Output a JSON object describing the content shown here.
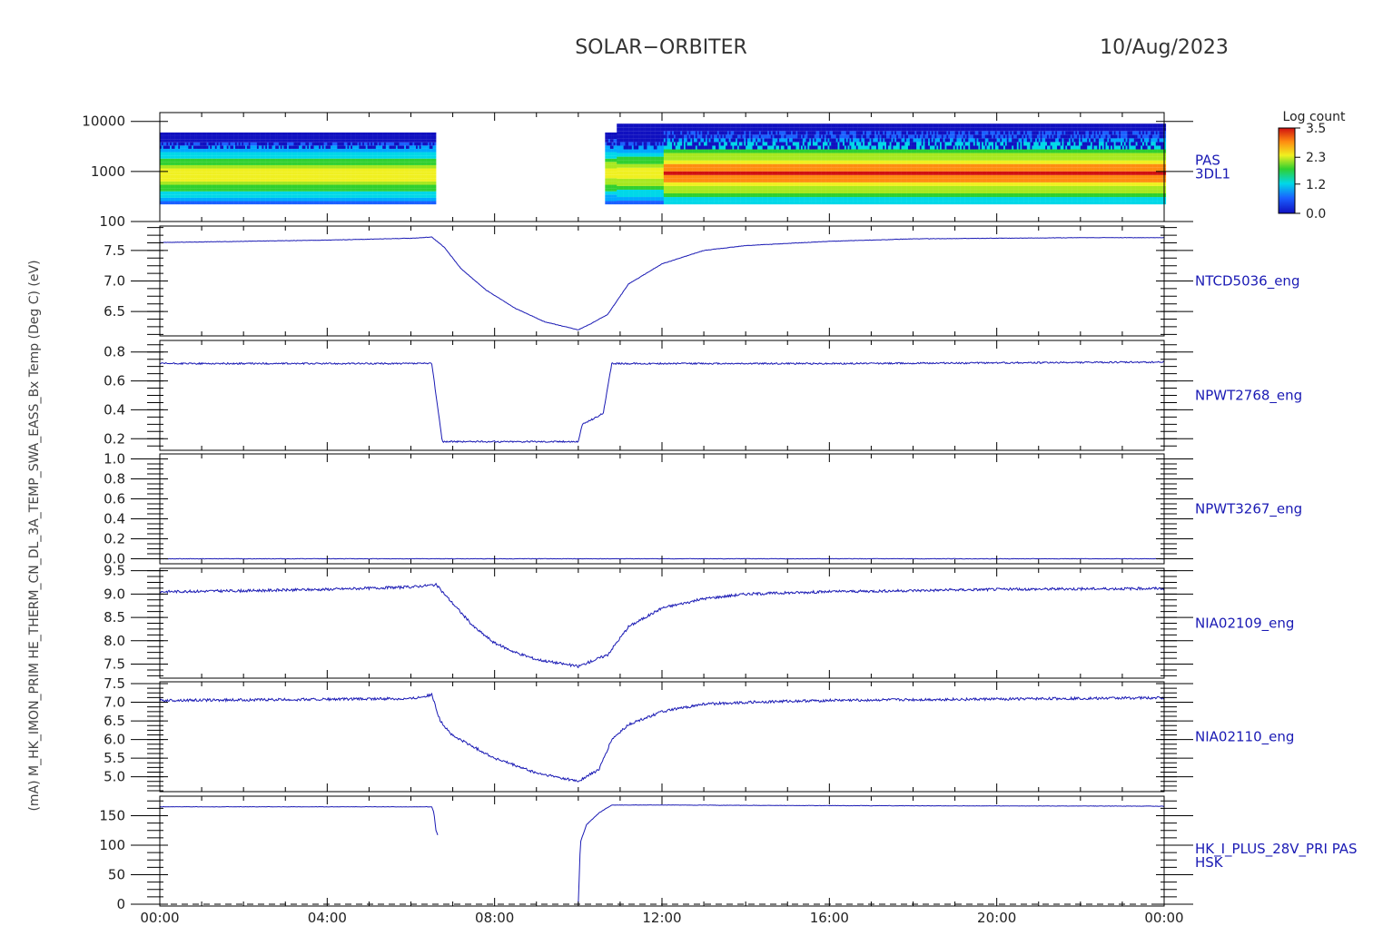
{
  "header": {
    "mission": "SOLAR−ORBITER",
    "date": "10/Aug/2023"
  },
  "colorbar": {
    "title": "Log count",
    "ticks": [
      "3.5",
      "2.3",
      "1.2",
      "0.0"
    ],
    "range": [
      0.0,
      3.5
    ]
  },
  "left_axis_title": "(mA) M_HK_IMON_PRIM HE_THERM_CN_DL_3A_TEMP_SWA_EASS_Bx Temp (Deg C) (eV)",
  "line_color": "#1a1ab4",
  "chart_data": [
    {
      "type": "heatmap",
      "panel": 0,
      "right_label": [
        "PAS",
        "3DL1"
      ],
      "y_scale": "log",
      "y_ticks": [
        "10000",
        "1000",
        "100"
      ],
      "ylim": [
        100,
        15000
      ],
      "data_gaps_hours": [
        [
          6.6,
          10.6
        ]
      ],
      "peak_energy_eV": 900
    },
    {
      "type": "line",
      "panel": 1,
      "right_label": [
        "NTCD5036_eng"
      ],
      "y_ticks": [
        "7.5",
        "7.0",
        "6.5"
      ],
      "ylim": [
        6.1,
        7.9
      ],
      "x_hours": [
        0,
        2,
        4,
        6,
        6.5,
        6.8,
        7.2,
        7.8,
        8.5,
        9.2,
        10.0,
        10.3,
        10.7,
        11.2,
        12,
        13,
        14,
        16,
        18,
        20,
        22,
        24
      ],
      "values": [
        7.63,
        7.65,
        7.67,
        7.7,
        7.72,
        7.55,
        7.2,
        6.85,
        6.55,
        6.33,
        6.2,
        6.3,
        6.45,
        6.95,
        7.28,
        7.5,
        7.58,
        7.65,
        7.69,
        7.7,
        7.71,
        7.71
      ]
    },
    {
      "type": "line",
      "panel": 2,
      "right_label": [
        "NPWT2768_eng"
      ],
      "y_ticks": [
        "0.8",
        "0.6",
        "0.4",
        "0.2"
      ],
      "ylim": [
        0.12,
        0.88
      ],
      "x_hours": [
        0,
        3,
        6,
        6.5,
        6.75,
        7,
        9,
        10.0,
        10.1,
        10.5,
        10.6,
        10.8,
        11,
        16,
        24
      ],
      "values": [
        0.72,
        0.72,
        0.72,
        0.72,
        0.18,
        0.18,
        0.18,
        0.18,
        0.3,
        0.36,
        0.38,
        0.72,
        0.72,
        0.72,
        0.73
      ]
    },
    {
      "type": "line",
      "panel": 3,
      "right_label": [
        "NPWT3267_eng"
      ],
      "y_ticks": [
        "1.0",
        "0.8",
        "0.6",
        "0.4",
        "0.2",
        "0.0"
      ],
      "ylim": [
        -0.05,
        1.05
      ],
      "x_hours": [
        0,
        24
      ],
      "values": [
        0.0,
        0.0
      ]
    },
    {
      "type": "line",
      "panel": 4,
      "right_label": [
        "NIA02109_eng"
      ],
      "y_ticks": [
        "9.5",
        "9.0",
        "8.5",
        "8.0",
        "7.5"
      ],
      "ylim": [
        7.2,
        9.55
      ],
      "x_hours": [
        0,
        2,
        4,
        6,
        6.6,
        7.0,
        7.5,
        8.0,
        8.5,
        9.0,
        10.0,
        10.7,
        11.2,
        12,
        13,
        14,
        16,
        20,
        24
      ],
      "values": [
        9.05,
        9.07,
        9.1,
        9.15,
        9.2,
        8.8,
        8.3,
        7.95,
        7.75,
        7.6,
        7.45,
        7.7,
        8.3,
        8.7,
        8.9,
        9.0,
        9.05,
        9.1,
        9.12
      ]
    },
    {
      "type": "line",
      "panel": 5,
      "right_label": [
        "NIA02110_eng"
      ],
      "y_ticks": [
        "7.5",
        "7.0",
        "6.5",
        "6.0",
        "5.5",
        "5.0"
      ],
      "ylim": [
        4.6,
        7.55
      ],
      "x_hours": [
        0,
        3,
        6,
        6.5,
        6.7,
        7.0,
        7.5,
        8.0,
        9.0,
        10.0,
        10.5,
        10.8,
        11.2,
        12,
        13,
        14,
        16,
        24
      ],
      "values": [
        7.05,
        7.07,
        7.1,
        7.2,
        6.5,
        6.1,
        5.8,
        5.5,
        5.1,
        4.88,
        5.2,
        6.0,
        6.4,
        6.75,
        6.95,
        7.0,
        7.05,
        7.12
      ]
    },
    {
      "type": "line",
      "panel": 6,
      "right_label": [
        "HK_I_PLUS_28V_PRI PAS",
        "HSK"
      ],
      "y_ticks": [
        "150",
        "100",
        "50",
        "0"
      ],
      "ylim": [
        -3,
        183
      ],
      "reference_line": 0,
      "segments": [
        {
          "x_hours": [
            0,
            6.5,
            6.55,
            6.6,
            6.65
          ],
          "values": [
            165,
            165,
            155,
            125,
            115
          ]
        },
        {
          "x_hours": [
            10.0,
            10.05,
            10.2,
            10.5,
            10.8,
            12,
            16,
            24
          ],
          "values": [
            0,
            105,
            135,
            155,
            168,
            168,
            167,
            166
          ]
        }
      ]
    }
  ],
  "x_axis": {
    "ticks": [
      "00:00",
      "04:00",
      "08:00",
      "12:00",
      "16:00",
      "20:00",
      "00:00"
    ],
    "range_hours": [
      0,
      24
    ]
  }
}
